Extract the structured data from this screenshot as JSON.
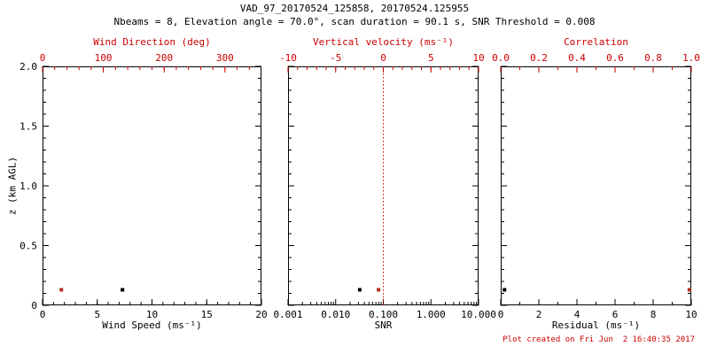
{
  "header": {
    "title": "VAD_97_20170524_125858, 20170524.125955",
    "subtitle": "Nbeams = 8, Elevation angle = 70.0°, scan duration = 90.1 s, SNR Threshold = 0.008"
  },
  "footer": {
    "created": "Plot created on Fri Jun  2 16:40:35 2017"
  },
  "colors": {
    "axis_red": "#cc0000",
    "axis_black": "#000000",
    "point_red": "#b03020",
    "point_black": "#000000"
  },
  "chart_data": [
    {
      "type": "scatter",
      "panel": "wind",
      "xlabel_bottom": "Wind Speed (ms⁻¹)",
      "xlabel_top": "Wind Direction (deg)",
      "ylabel": "z (km AGL)",
      "x_bottom_range": [
        0,
        20
      ],
      "x_bottom_ticks": [
        "0",
        "5",
        "10",
        "15",
        "20"
      ],
      "x_bottom_minor": 5,
      "x_top_range": [
        0,
        360
      ],
      "x_top_ticks": [
        "0",
        "100",
        "200",
        "300"
      ],
      "x_top_minor": 5,
      "y_range": [
        0,
        2
      ],
      "y_ticks": [
        "0",
        "0.5",
        "1.0",
        "1.5",
        "2.0"
      ],
      "y_minor": 5,
      "y_labels": true,
      "series": [
        {
          "name": "wind-speed",
          "axis": "bottom",
          "color": "#000000",
          "marker": "square",
          "points": [
            {
              "x": 7.3,
              "z": 0.13
            }
          ]
        },
        {
          "name": "wind-direction",
          "axis": "top",
          "color": "#b03020",
          "marker": "square",
          "points": [
            {
              "x": 31,
              "z": 0.13
            }
          ]
        }
      ]
    },
    {
      "type": "scatter",
      "panel": "snr",
      "xlabel_bottom": "SNR",
      "xlabel_top": "Vertical velocity (ms⁻¹)",
      "x_bottom_scale": "log",
      "x_bottom_range": [
        0.001,
        10
      ],
      "x_bottom_ticks": [
        "0.001",
        "0.010",
        "0.100",
        "1.000",
        "10.000"
      ],
      "x_top_range": [
        -10,
        10
      ],
      "x_top_ticks": [
        "-10",
        "-5",
        "0",
        "5",
        "10"
      ],
      "x_top_minor": 5,
      "y_range": [
        0,
        2
      ],
      "y_ticks": [
        "0",
        "0.5",
        "1.0",
        "1.5",
        "2.0"
      ],
      "y_minor": 5,
      "y_labels": false,
      "refline": {
        "name": "vertical-velocity-zero-line",
        "axis": "top",
        "x": 0,
        "color": "#cc0000",
        "style": "dotted"
      },
      "series": [
        {
          "name": "snr",
          "axis": "bottom",
          "color": "#000000",
          "marker": "square",
          "points": [
            {
              "x": 0.032,
              "z": 0.13
            }
          ]
        },
        {
          "name": "vertical-velocity",
          "axis": "top",
          "color": "#b03020",
          "marker": "square",
          "points": [
            {
              "x": -0.5,
              "z": 0.13
            }
          ]
        }
      ]
    },
    {
      "type": "scatter",
      "panel": "residual",
      "xlabel_bottom": "Residual (ms⁻¹)",
      "xlabel_top": "Correlation",
      "x_bottom_range": [
        0,
        10
      ],
      "x_bottom_ticks": [
        "0",
        "2",
        "4",
        "6",
        "8",
        "10"
      ],
      "x_bottom_minor": 2,
      "x_top_range": [
        0,
        1
      ],
      "x_top_ticks": [
        "0.0",
        "0.2",
        "0.4",
        "0.6",
        "0.8",
        "1.0"
      ],
      "x_top_minor": 2,
      "y_range": [
        0,
        2
      ],
      "y_ticks": [
        "0",
        "0.5",
        "1.0",
        "1.5",
        "2.0"
      ],
      "y_minor": 5,
      "y_labels": false,
      "series": [
        {
          "name": "residual",
          "axis": "bottom",
          "color": "#000000",
          "marker": "square",
          "points": [
            {
              "x": 0.2,
              "z": 0.13
            }
          ]
        },
        {
          "name": "correlation",
          "axis": "top",
          "color": "#b03020",
          "marker": "square",
          "points": [
            {
              "x": 0.99,
              "z": 0.13
            }
          ]
        }
      ]
    }
  ]
}
